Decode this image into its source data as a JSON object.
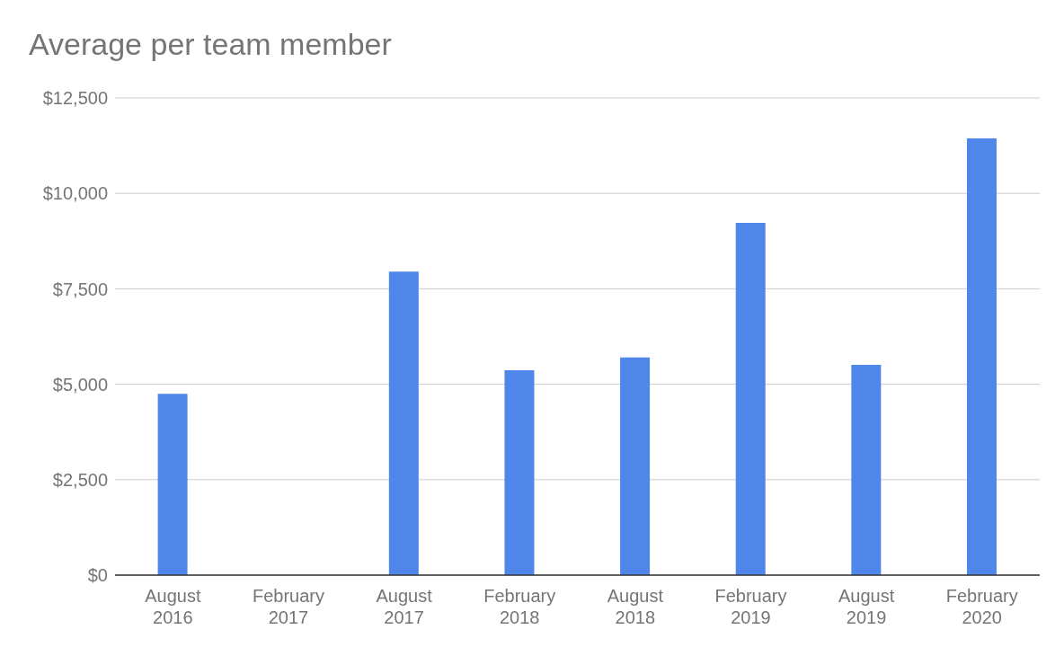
{
  "chart_data": {
    "type": "bar",
    "title": "Average per team member",
    "categories": [
      "August 2016",
      "February 2017",
      "August 2017",
      "February 2018",
      "August 2018",
      "February 2019",
      "August 2019",
      "February 2020"
    ],
    "values": [
      4750,
      null,
      7950,
      5370,
      5700,
      9230,
      5510,
      11440
    ],
    "color": "#4f86ea",
    "ylim": [
      0,
      12500
    ],
    "yticks": [
      {
        "value": 0,
        "label": "$0"
      },
      {
        "value": 2500,
        "label": "$2,500"
      },
      {
        "value": 5000,
        "label": "$5,000"
      },
      {
        "value": 7500,
        "label": "$7,500"
      },
      {
        "value": 10000,
        "label": "$10,000"
      },
      {
        "value": 12500,
        "label": "$12,500"
      }
    ],
    "grid": "y"
  }
}
